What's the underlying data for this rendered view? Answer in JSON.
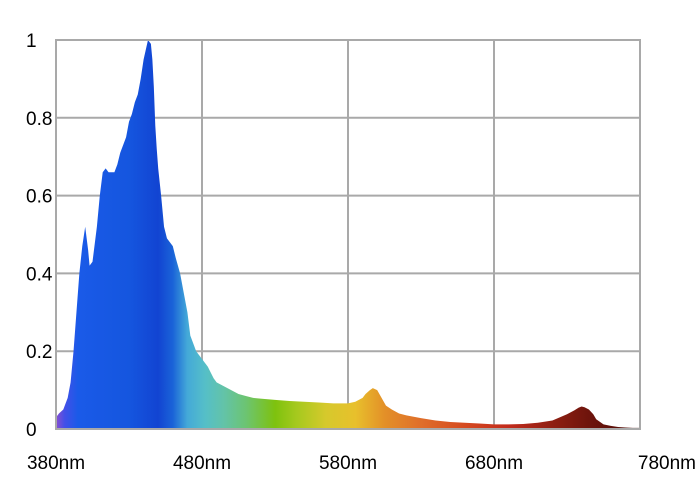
{
  "chart_data": {
    "type": "area",
    "title": "",
    "xlabel": "",
    "ylabel": "",
    "xlim": [
      380,
      780
    ],
    "ylim": [
      0,
      1
    ],
    "grid": true,
    "x_ticks": [
      {
        "value": 380,
        "label": "380nm"
      },
      {
        "value": 480,
        "label": "480nm"
      },
      {
        "value": 580,
        "label": "580nm"
      },
      {
        "value": 680,
        "label": "680nm"
      },
      {
        "value": 780,
        "label": "780nm"
      }
    ],
    "y_ticks": [
      {
        "value": 0,
        "label": "0"
      },
      {
        "value": 0.2,
        "label": "0.2"
      },
      {
        "value": 0.4,
        "label": "0.4"
      },
      {
        "value": 0.6,
        "label": "0.6"
      },
      {
        "value": 0.8,
        "label": "0.8"
      },
      {
        "value": 1,
        "label": "1"
      }
    ],
    "series": [
      {
        "x": [
          380,
          382,
          385,
          388,
          390,
          392,
          394,
          396,
          398,
          400,
          402,
          403,
          405,
          408,
          410,
          412,
          414,
          416,
          418,
          420,
          422,
          424,
          426,
          428,
          430,
          432,
          434,
          436,
          438,
          440,
          443,
          445,
          446,
          447,
          448,
          449,
          450,
          452,
          454,
          456,
          458,
          460,
          462,
          465,
          468,
          470,
          472,
          474,
          476,
          478,
          480,
          482,
          484,
          486,
          488,
          490,
          495,
          500,
          505,
          510,
          515,
          520,
          530,
          540,
          550,
          560,
          570,
          580,
          585,
          590,
          592,
          595,
          597,
          600,
          603,
          606,
          610,
          615,
          620,
          630,
          640,
          650,
          660,
          670,
          680,
          690,
          700,
          710,
          720,
          725,
          730,
          735,
          738,
          740,
          742,
          745,
          748,
          750,
          755,
          760,
          765,
          770,
          775,
          780
        ],
        "y": [
          0.03,
          0.04,
          0.05,
          0.08,
          0.12,
          0.2,
          0.3,
          0.4,
          0.47,
          0.52,
          0.46,
          0.42,
          0.43,
          0.52,
          0.6,
          0.66,
          0.67,
          0.66,
          0.66,
          0.66,
          0.68,
          0.71,
          0.73,
          0.75,
          0.79,
          0.81,
          0.84,
          0.86,
          0.9,
          0.95,
          1.0,
          0.99,
          0.95,
          0.88,
          0.78,
          0.72,
          0.67,
          0.6,
          0.52,
          0.49,
          0.48,
          0.47,
          0.44,
          0.4,
          0.34,
          0.3,
          0.24,
          0.22,
          0.2,
          0.19,
          0.18,
          0.17,
          0.16,
          0.145,
          0.13,
          0.12,
          0.11,
          0.1,
          0.09,
          0.085,
          0.08,
          0.078,
          0.075,
          0.072,
          0.07,
          0.068,
          0.066,
          0.066,
          0.07,
          0.08,
          0.09,
          0.1,
          0.105,
          0.1,
          0.08,
          0.06,
          0.05,
          0.04,
          0.035,
          0.028,
          0.022,
          0.018,
          0.016,
          0.014,
          0.012,
          0.012,
          0.013,
          0.016,
          0.022,
          0.03,
          0.038,
          0.048,
          0.055,
          0.058,
          0.056,
          0.05,
          0.038,
          0.025,
          0.012,
          0.008,
          0.005,
          0.004,
          0.003,
          0.003
        ]
      }
    ],
    "gradient_colors": [
      {
        "nm": 380,
        "color": "#8a4fd0"
      },
      {
        "nm": 386,
        "color": "#4250e8"
      },
      {
        "nm": 395,
        "color": "#1a5ae8"
      },
      {
        "nm": 430,
        "color": "#1556df"
      },
      {
        "nm": 450,
        "color": "#1244d2"
      },
      {
        "nm": 460,
        "color": "#1a63d8"
      },
      {
        "nm": 470,
        "color": "#44a9d8"
      },
      {
        "nm": 482,
        "color": "#55bfc8"
      },
      {
        "nm": 495,
        "color": "#63c3a8"
      },
      {
        "nm": 510,
        "color": "#6cc472"
      },
      {
        "nm": 530,
        "color": "#7ec20e"
      },
      {
        "nm": 545,
        "color": "#a6c91e"
      },
      {
        "nm": 565,
        "color": "#d6c92c"
      },
      {
        "nm": 585,
        "color": "#e8c02c"
      },
      {
        "nm": 605,
        "color": "#e39028"
      },
      {
        "nm": 630,
        "color": "#df6e2a"
      },
      {
        "nm": 660,
        "color": "#d54a20"
      },
      {
        "nm": 690,
        "color": "#c22b1c"
      },
      {
        "nm": 720,
        "color": "#8f1f12"
      },
      {
        "nm": 745,
        "color": "#6e140c"
      },
      {
        "nm": 780,
        "color": "#4a0a06"
      }
    ]
  }
}
